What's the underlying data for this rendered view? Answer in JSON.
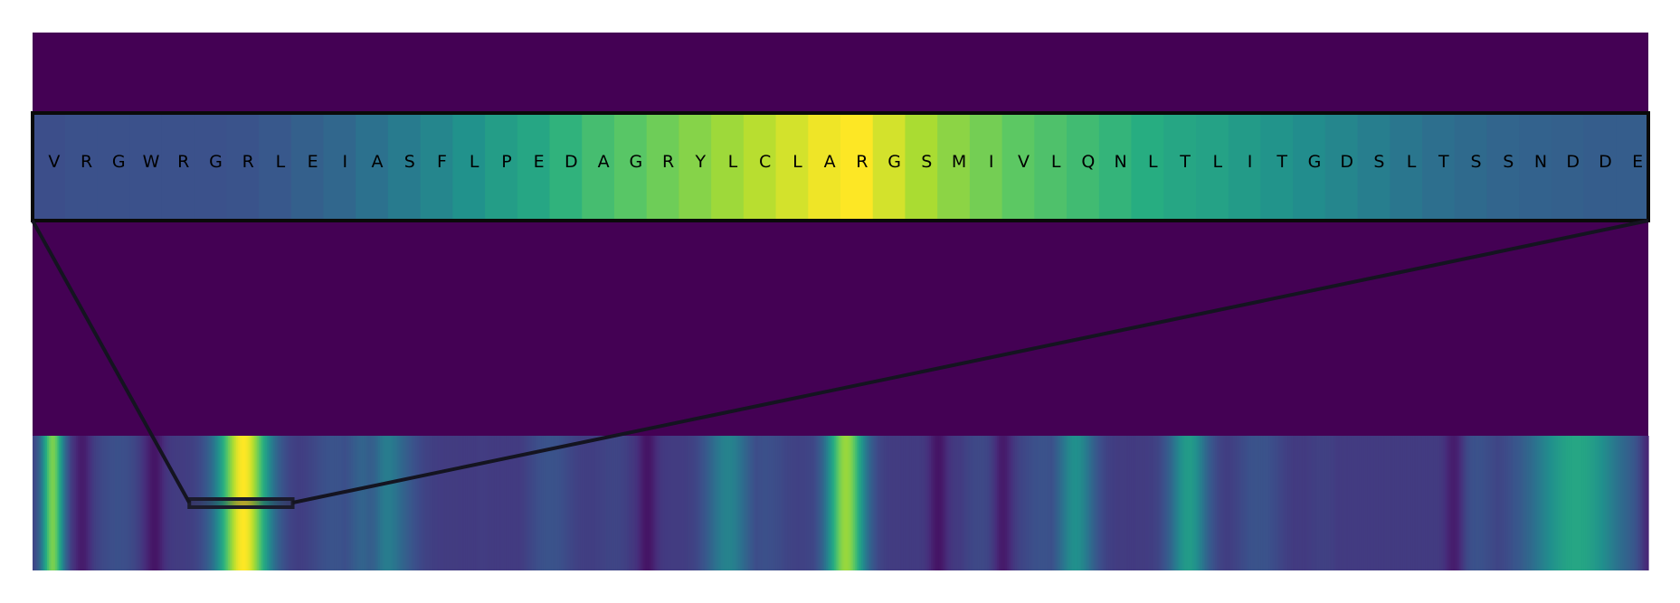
{
  "chart_data": {
    "type": "heatmap",
    "title": "",
    "background_color": "#440154",
    "colormap": "viridis",
    "zoom_panel": {
      "residues": [
        "V",
        "R",
        "G",
        "W",
        "R",
        "G",
        "R",
        "L",
        "E",
        "I",
        "A",
        "S",
        "F",
        "L",
        "P",
        "E",
        "D",
        "A",
        "G",
        "R",
        "Y",
        "L",
        "C",
        "L",
        "A",
        "R",
        "G",
        "S",
        "M",
        "I",
        "V",
        "L",
        "Q",
        "N",
        "L",
        "T",
        "L",
        "I",
        "T",
        "G",
        "D",
        "S",
        "L",
        "T",
        "S",
        "S",
        "N",
        "D",
        "D",
        "E"
      ],
      "values": [
        0.24,
        0.25,
        0.25,
        0.25,
        0.25,
        0.25,
        0.26,
        0.28,
        0.31,
        0.34,
        0.38,
        0.42,
        0.46,
        0.51,
        0.56,
        0.6,
        0.65,
        0.7,
        0.74,
        0.78,
        0.82,
        0.86,
        0.9,
        0.94,
        0.98,
        1.0,
        0.94,
        0.88,
        0.83,
        0.79,
        0.75,
        0.72,
        0.69,
        0.66,
        0.63,
        0.6,
        0.58,
        0.55,
        0.52,
        0.49,
        0.46,
        0.43,
        0.4,
        0.37,
        0.35,
        0.33,
        0.32,
        0.31,
        0.3,
        0.3
      ]
    },
    "overview_track": {
      "length": 1000,
      "peaks": [
        {
          "center": 12,
          "height": 0.8,
          "width": 7
        },
        {
          "center": 130,
          "height": 1.0,
          "width": 16
        },
        {
          "center": 215,
          "height": 0.45,
          "width": 18
        },
        {
          "center": 430,
          "height": 0.45,
          "width": 14
        },
        {
          "center": 503,
          "height": 0.85,
          "width": 12
        },
        {
          "center": 645,
          "height": 0.5,
          "width": 12
        },
        {
          "center": 715,
          "height": 0.55,
          "width": 12
        },
        {
          "center": 955,
          "height": 0.6,
          "width": 30
        }
      ],
      "baseline": 0.18,
      "dips": [
        30,
        75,
        210,
        380,
        560,
        600,
        880,
        1000
      ],
      "highlight_range": [
        97,
        161
      ]
    },
    "grid": false,
    "legend": "none"
  }
}
